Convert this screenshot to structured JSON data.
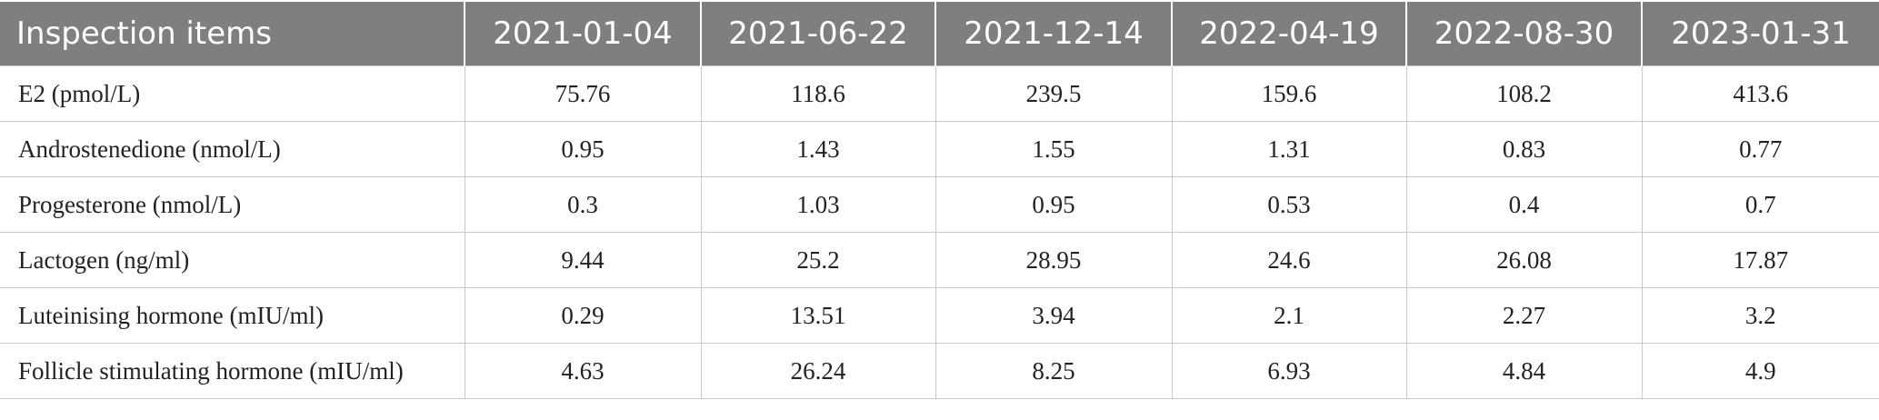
{
  "table": {
    "header": [
      "Inspection items",
      "2021-01-04",
      "2021-06-22",
      "2021-12-14",
      "2022-04-19",
      "2022-08-30",
      "2023-01-31"
    ],
    "rows": [
      [
        "E2 (pmol/L)",
        75.76,
        118.6,
        239.5,
        159.6,
        108.2,
        413.6
      ],
      [
        "Androstenedione (nmol/L)",
        0.95,
        1.43,
        1.55,
        1.31,
        0.83,
        0.77
      ],
      [
        "Progesterone (nmol/L)",
        0.3,
        1.03,
        0.95,
        0.53,
        0.4,
        0.7
      ],
      [
        "Lactogen (ng/ml)",
        9.44,
        25.2,
        28.95,
        24.6,
        26.08,
        17.87
      ],
      [
        "Luteinising hormone (mIU/ml)",
        0.29,
        13.51,
        3.94,
        2.1,
        2.27,
        3.2
      ],
      [
        "Follicle stimulating hormone (mIU/ml)",
        4.63,
        26.24,
        8.25,
        6.93,
        4.84,
        4.9
      ]
    ]
  }
}
